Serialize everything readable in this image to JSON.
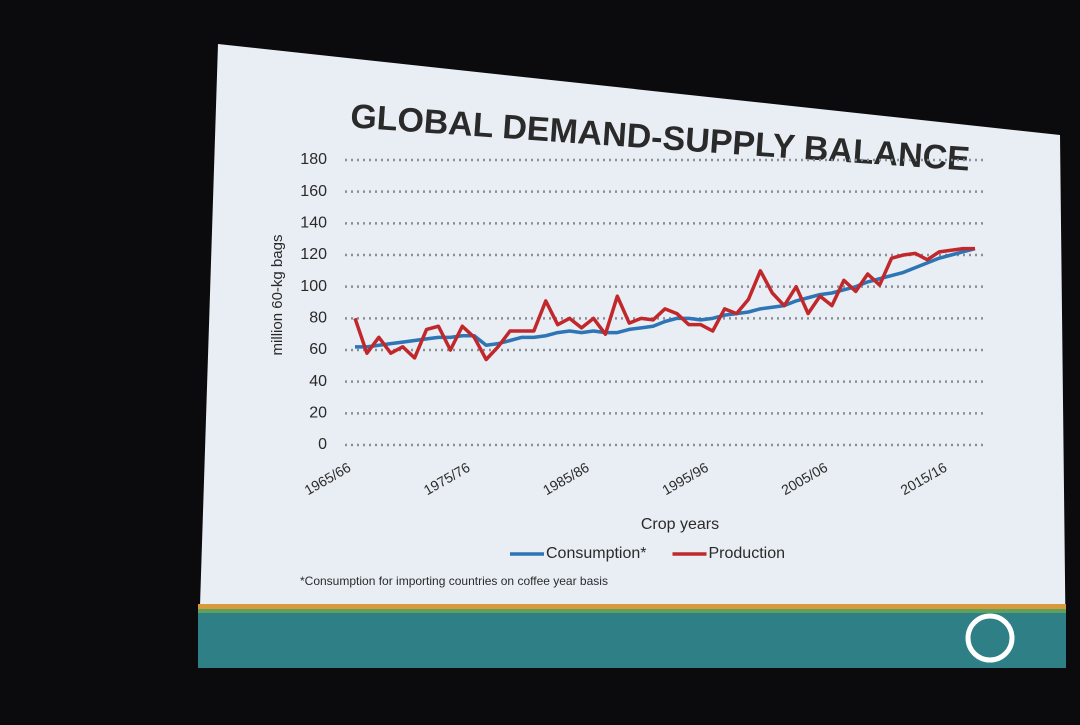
{
  "chart_data": {
    "type": "line",
    "title": "GLOBAL DEMAND-SUPPLY BALANCE",
    "y_label": "million 60-kg bags",
    "x_label": "Crop years",
    "footnote": "*Consumption for importing countries on coffee year basis",
    "categories": [
      "1965/66",
      null,
      null,
      null,
      null,
      null,
      null,
      null,
      null,
      null,
      "1975/76",
      null,
      null,
      null,
      null,
      null,
      null,
      null,
      null,
      null,
      "1985/86",
      null,
      null,
      null,
      null,
      null,
      null,
      null,
      null,
      null,
      "1995/96",
      null,
      null,
      null,
      null,
      null,
      null,
      null,
      null,
      null,
      "2005/06",
      null,
      null,
      null,
      null,
      null,
      null,
      null,
      null,
      null,
      "2015/16",
      null,
      null
    ],
    "series": [
      {
        "name": "Consumption*",
        "color": "#2e75b6",
        "values": [
          62,
          62,
          63,
          64,
          65,
          66,
          67,
          68,
          68,
          69,
          69,
          63,
          64,
          66,
          68,
          68,
          69,
          71,
          72,
          71,
          72,
          71,
          71,
          73,
          74,
          75,
          78,
          80,
          80,
          79,
          80,
          82,
          83,
          84,
          86,
          87,
          88,
          91,
          93,
          95,
          96,
          98,
          100,
          103,
          105,
          107,
          109,
          112,
          115,
          118,
          120,
          122,
          124
        ]
      },
      {
        "name": "Production",
        "color": "#c0282b",
        "values": [
          80,
          58,
          68,
          58,
          62,
          55,
          73,
          75,
          60,
          75,
          68,
          54,
          62,
          72,
          72,
          72,
          91,
          76,
          80,
          74,
          80,
          70,
          94,
          77,
          80,
          79,
          86,
          83,
          76,
          76,
          72,
          86,
          83,
          92,
          110,
          96,
          88,
          100,
          83,
          94,
          88,
          104,
          97,
          108,
          101,
          118,
          120,
          121,
          117,
          122,
          123,
          124,
          124
        ]
      }
    ],
    "ylim": [
      0,
      180
    ],
    "yticks": [
      0,
      20,
      40,
      60,
      80,
      100,
      120,
      140,
      160,
      180
    ],
    "grid": true,
    "legend": "bottom"
  }
}
